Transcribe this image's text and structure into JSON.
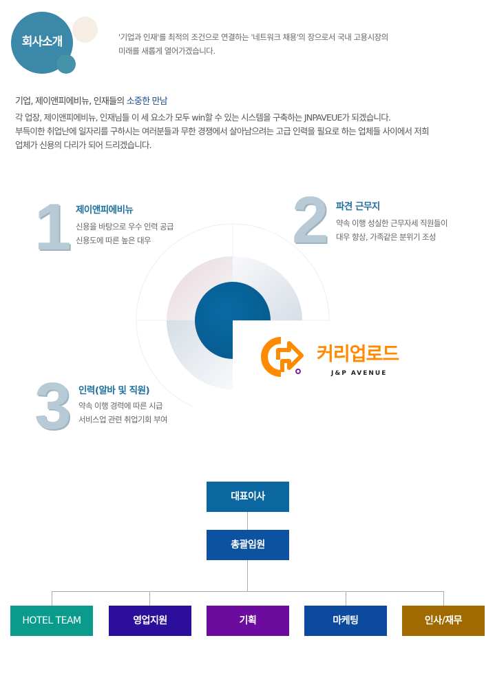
{
  "header": {
    "title": "회사소개",
    "lines": [
      "'기업과 인재'를 최적의 조건으로 연결하는 '네트워크 채용'의 장으로서 국내 고용시장의",
      "미래를 새롭게 열어가겠습니다."
    ]
  },
  "intro": {
    "title_prefix": "기업, 제이앤피에비뉴, 인재들의 ",
    "title_highlight": "소중한 만남",
    "lines": [
      "각 업장, 제이앤피에비뉴, 인재님들 이 세 요소가 모두 win할 수 있는 시스템을 구축하는 JNPAVEUE가 되겠습니다.",
      "부득이한 취업난에 일자리를 구하시는 여러분들과 무한 경쟁에서 살아남으려는 고급 인력을 필요로 하는 업체들 사이에서 저희",
      "업체가 신용의 다리가 되어 드리겠습니다."
    ]
  },
  "features": [
    {
      "number": "1",
      "title": "제이앤피에비뉴",
      "lines": [
        "신용을 바탕으로 우수 인력 공급",
        "신용도에 따른 높은 대우"
      ]
    },
    {
      "number": "2",
      "title": "파견 근무지",
      "lines": [
        "약속 이행 성실한 근무자세 직원들이",
        "대우 향상, 가족같은 분위기 조성"
      ]
    },
    {
      "number": "3",
      "title": "인력(알바 및 직원)",
      "lines": [
        "약속 이행 경력에 따른 시급",
        "서비스업 관련 취업기회 부여"
      ]
    }
  ],
  "logo": {
    "name": "커리업로드",
    "sub": "J&P AVENUE",
    "color": "#ff8a00",
    "accent": "#7a1fa2"
  },
  "org": {
    "ceo": "대표이사",
    "exec": "총괄임원",
    "departments": [
      {
        "label": "HOTEL TEAM",
        "color": "#0a9b8c"
      },
      {
        "label": "영업지원",
        "color": "#2b0f9a"
      },
      {
        "label": "기획",
        "color": "#6c0c9e"
      },
      {
        "label": "마케팅",
        "color": "#0b4a9e"
      },
      {
        "label": "인사/재무",
        "color": "#a06a00"
      }
    ],
    "ceo_color": "#0c67a0",
    "exec_color": "#0c52a0"
  }
}
